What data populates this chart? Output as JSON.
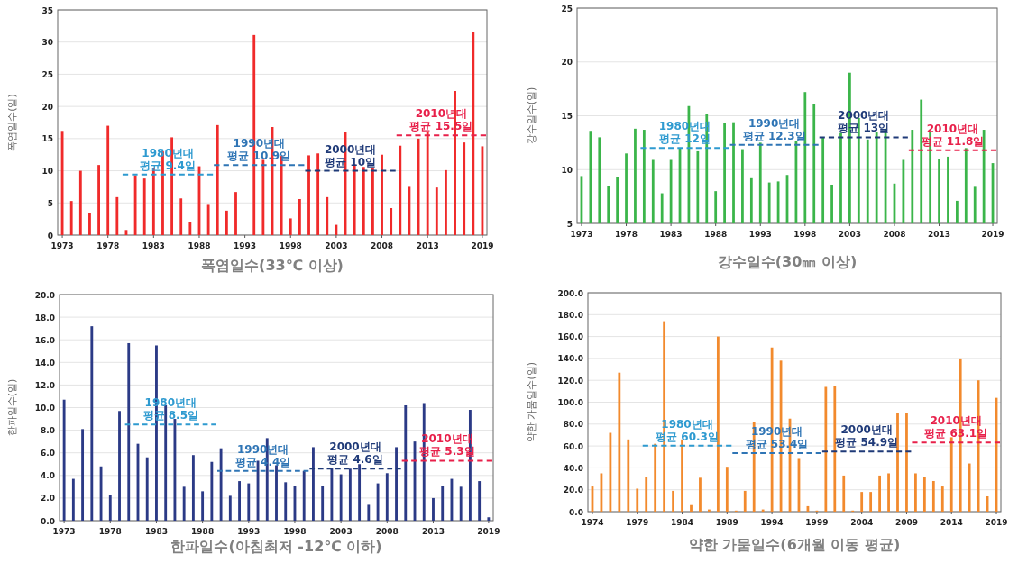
{
  "chart_data": [
    {
      "type": "bar",
      "title": "폭염일수(33℃ 이상)",
      "ylabel": "폭염일수(일)",
      "xlim": [
        1972.5,
        2019.5
      ],
      "xticks": [
        1973,
        1978,
        1983,
        1988,
        1993,
        1998,
        2003,
        2008,
        2013,
        2019
      ],
      "ylim": [
        0,
        35
      ],
      "yticks": [
        0,
        5,
        10,
        15,
        20,
        25,
        30,
        35
      ],
      "grid": "y",
      "x": [
        1973,
        1974,
        1975,
        1976,
        1977,
        1978,
        1979,
        1980,
        1981,
        1982,
        1983,
        1984,
        1985,
        1986,
        1987,
        1988,
        1989,
        1990,
        1991,
        1992,
        1993,
        1994,
        1995,
        1996,
        1997,
        1998,
        1999,
        2000,
        2001,
        2002,
        2003,
        2004,
        2005,
        2006,
        2007,
        2008,
        2009,
        2010,
        2011,
        2012,
        2013,
        2014,
        2015,
        2016,
        2017,
        2018,
        2019
      ],
      "series": [
        {
          "color": "#f02a2a",
          "values": [
            16.2,
            5.3,
            10.0,
            3.4,
            10.9,
            17.0,
            5.9,
            0.8,
            9.3,
            8.8,
            10.5,
            13.0,
            15.2,
            5.7,
            2.1,
            10.7,
            4.7,
            17.1,
            3.8,
            6.7,
            0,
            31.1,
            11.7,
            16.8,
            12.3,
            2.6,
            5.6,
            12.4,
            12.7,
            5.9,
            1.6,
            16.0,
            11.0,
            10.6,
            10.5,
            12.5,
            4.2,
            13.9,
            7.5,
            15.0,
            16.1,
            7.4,
            10.1,
            22.4,
            14.4,
            31.5,
            13.8
          ]
        },
        {
          "type": "line",
          "name": "1980년대\n평균 9.4일",
          "color": "#2e9ad0",
          "line_style": "dashed",
          "x": [
            1979.6,
            1989.5
          ],
          "values": [
            9.4,
            9.4
          ]
        },
        {
          "type": "line",
          "name": "1990년대\n평균 10.9일",
          "color": "#2f75b5",
          "line_style": "dashed",
          "x": [
            1989.6,
            1999.5
          ],
          "values": [
            10.9,
            10.9
          ]
        },
        {
          "type": "line",
          "name": "2000년대\n평균 10일",
          "color": "#1f3a78",
          "line_style": "dashed",
          "x": [
            1999.6,
            2009.5
          ],
          "values": [
            10,
            10
          ]
        },
        {
          "type": "line",
          "name": "2010년대\n평균 15.5일",
          "color": "#e8204a",
          "line_style": "dashed",
          "x": [
            2009.6,
            2019.4
          ],
          "values": [
            15.5,
            15.5
          ]
        }
      ]
    },
    {
      "type": "bar",
      "title": "강수일수(30㎜ 이상)",
      "ylabel": "강수일수(일)",
      "xlim": [
        1972.5,
        2019.5
      ],
      "xticks": [
        1973,
        1978,
        1983,
        1988,
        1993,
        1998,
        2003,
        2008,
        2013,
        2019
      ],
      "ylim": [
        5,
        25
      ],
      "yticks": [
        5,
        10,
        15,
        20,
        25
      ],
      "grid": "y",
      "x": [
        1973,
        1974,
        1975,
        1976,
        1977,
        1978,
        1979,
        1980,
        1981,
        1982,
        1983,
        1984,
        1985,
        1986,
        1987,
        1988,
        1989,
        1990,
        1991,
        1992,
        1993,
        1994,
        1995,
        1996,
        1997,
        1998,
        1999,
        2000,
        2001,
        2002,
        2003,
        2004,
        2005,
        2006,
        2007,
        2008,
        2009,
        2010,
        2011,
        2012,
        2013,
        2014,
        2015,
        2016,
        2017,
        2018,
        2019
      ],
      "series": [
        {
          "color": "#3bb54a",
          "values": [
            9.4,
            13.6,
            13.0,
            8.5,
            9.3,
            11.5,
            13.8,
            13.7,
            10.9,
            7.8,
            10.9,
            12.0,
            15.9,
            11.7,
            15.2,
            8.0,
            14.3,
            14.4,
            11.9,
            9.2,
            12.5,
            8.8,
            8.9,
            9.5,
            12.7,
            17.2,
            16.1,
            13.0,
            8.6,
            13.4,
            19.0,
            14.8,
            12.8,
            13.5,
            13.8,
            8.7,
            10.9,
            13.7,
            16.5,
            13.5,
            11.0,
            11.2,
            7.1,
            12.0,
            8.4,
            13.7,
            10.6
          ]
        },
        {
          "type": "line",
          "name": "1980년대\n평균 12일",
          "color": "#2e9ad0",
          "line_style": "dashed",
          "x": [
            1979.6,
            1989.5
          ],
          "values": [
            12,
            12
          ]
        },
        {
          "type": "line",
          "name": "1990년대\n평균 12.3일",
          "color": "#2f75b5",
          "line_style": "dashed",
          "x": [
            1989.6,
            1999.5
          ],
          "values": [
            12.3,
            12.3
          ]
        },
        {
          "type": "line",
          "name": "2000년대\n평균 13일",
          "color": "#1f3a78",
          "line_style": "dashed",
          "x": [
            1999.6,
            2009.5
          ],
          "values": [
            13,
            13
          ]
        },
        {
          "type": "line",
          "name": "2010년대\n평균 11.8일",
          "color": "#e8204a",
          "line_style": "dashed",
          "x": [
            2009.6,
            2019.4
          ],
          "values": [
            11.8,
            11.8
          ]
        }
      ]
    },
    {
      "type": "bar",
      "title": "한파일수(아침최저 -12℃ 이하)",
      "ylabel": "한파일수(일)",
      "xlim": [
        1972.5,
        2019.5
      ],
      "xticks": [
        1973,
        1978,
        1983,
        1988,
        1993,
        1998,
        2003,
        2008,
        2013,
        2019
      ],
      "ylim": [
        0,
        20
      ],
      "yticks": [
        {
          "value": 0,
          "label": "0.0"
        },
        {
          "value": 2,
          "label": "2.0"
        },
        {
          "value": 4,
          "label": "4.0"
        },
        {
          "value": 6,
          "label": "6.0"
        },
        {
          "value": 8,
          "label": "8.0"
        },
        {
          "value": 10,
          "label": "10.0"
        },
        {
          "value": 12,
          "label": "12.0"
        },
        {
          "value": 14,
          "label": "14.0"
        },
        {
          "value": 16,
          "label": "16.0"
        },
        {
          "value": 18,
          "label": "18.0"
        },
        {
          "value": 20,
          "label": "20.0"
        }
      ],
      "grid": "y",
      "x": [
        1973,
        1974,
        1975,
        1976,
        1977,
        1978,
        1979,
        1980,
        1981,
        1982,
        1983,
        1984,
        1985,
        1986,
        1987,
        1988,
        1989,
        1990,
        1991,
        1992,
        1993,
        1994,
        1995,
        1996,
        1997,
        1998,
        1999,
        2000,
        2001,
        2002,
        2003,
        2004,
        2005,
        2006,
        2007,
        2008,
        2009,
        2010,
        2011,
        2012,
        2013,
        2014,
        2015,
        2016,
        2017,
        2018,
        2019
      ],
      "series": [
        {
          "color": "#2b3a86",
          "values": [
            10.7,
            3.7,
            8.1,
            17.2,
            4.8,
            2.3,
            9.7,
            15.7,
            6.8,
            5.6,
            15.5,
            10.2,
            9.0,
            3.0,
            5.8,
            2.6,
            5.2,
            6.4,
            2.2,
            3.5,
            3.3,
            5.3,
            7.3,
            4.9,
            3.4,
            3.1,
            4.4,
            6.5,
            3.1,
            4.7,
            4.1,
            4.6,
            5.0,
            1.4,
            3.3,
            4.2,
            6.5,
            10.2,
            7.0,
            10.4,
            2.0,
            3.1,
            3.7,
            3.0,
            9.8,
            3.5,
            0.3
          ]
        },
        {
          "type": "line",
          "name": "1980년대\n평균 8.5일",
          "color": "#2e9ad0",
          "line_style": "dashed",
          "x": [
            1979.6,
            1989.5
          ],
          "values": [
            8.5,
            8.5
          ]
        },
        {
          "type": "line",
          "name": "1990년대\n평균 4.4일",
          "color": "#2f75b5",
          "line_style": "dashed",
          "x": [
            1989.6,
            1999.5
          ],
          "values": [
            4.4,
            4.4
          ]
        },
        {
          "type": "line",
          "name": "2000년대\n평균 4.6일",
          "color": "#1f3a78",
          "line_style": "dashed",
          "x": [
            1999.6,
            2009.5
          ],
          "values": [
            4.6,
            4.6
          ]
        },
        {
          "type": "line",
          "name": "2010년대\n평균 5.3일",
          "color": "#e8204a",
          "line_style": "dashed",
          "x": [
            2009.6,
            2019.4
          ],
          "values": [
            5.3,
            5.3
          ]
        }
      ]
    },
    {
      "type": "bar",
      "title": "약한 가뭄일수(6개월 이동 평균)",
      "ylabel": "약한 가뭄일수(일)",
      "xlim": [
        1973.5,
        2019.5
      ],
      "xticks": [
        1974,
        1979,
        1984,
        1989,
        1994,
        1999,
        2004,
        2009,
        2014,
        2019
      ],
      "ylim": [
        0,
        200
      ],
      "yticks": [
        {
          "value": 0,
          "label": "0.0"
        },
        {
          "value": 20,
          "label": "20.0"
        },
        {
          "value": 40,
          "label": "40.0"
        },
        {
          "value": 60,
          "label": "60.0"
        },
        {
          "value": 80,
          "label": "80.0"
        },
        {
          "value": 100,
          "label": "100.0"
        },
        {
          "value": 120,
          "label": "120.0"
        },
        {
          "value": 140,
          "label": "140.0"
        },
        {
          "value": 160,
          "label": "160.0"
        },
        {
          "value": 180,
          "label": "180.0"
        },
        {
          "value": 200,
          "label": "200.0"
        }
      ],
      "grid": "y",
      "x": [
        1974,
        1975,
        1976,
        1977,
        1978,
        1979,
        1980,
        1981,
        1982,
        1983,
        1984,
        1985,
        1986,
        1987,
        1988,
        1989,
        1990,
        1991,
        1992,
        1993,
        1994,
        1995,
        1996,
        1997,
        1998,
        1999,
        2000,
        2001,
        2002,
        2003,
        2004,
        2005,
        2006,
        2007,
        2008,
        2009,
        2010,
        2011,
        2012,
        2013,
        2014,
        2015,
        2016,
        2017,
        2018,
        2019
      ],
      "series": [
        {
          "color": "#f28a2d",
          "values": [
            23,
            35,
            72,
            127,
            66,
            21,
            32,
            62,
            174,
            19,
            66,
            6,
            31,
            2,
            160,
            41,
            1,
            19,
            82,
            2,
            150,
            138,
            85,
            49,
            5,
            1,
            114,
            115,
            33,
            1,
            18,
            18,
            33,
            35,
            90,
            90,
            35,
            32,
            28,
            23,
            68,
            140,
            44,
            120,
            14,
            104
          ]
        },
        {
          "type": "line",
          "name": "1980년대\n평균 60.3일",
          "color": "#2e9ad0",
          "line_style": "dashed",
          "x": [
            1979.6,
            1989.5
          ],
          "values": [
            60.3,
            60.3
          ]
        },
        {
          "type": "line",
          "name": "1990년대\n평균 53.4일",
          "color": "#2f75b5",
          "line_style": "dashed",
          "x": [
            1989.6,
            1999.5
          ],
          "values": [
            53.4,
            53.4
          ]
        },
        {
          "type": "line",
          "name": "2000년대\n평균 54.9일",
          "color": "#1f3a78",
          "line_style": "dashed",
          "x": [
            1999.6,
            2009.5
          ],
          "values": [
            54.9,
            54.9
          ]
        },
        {
          "type": "line",
          "name": "2010년대\n평균 63.1일",
          "color": "#e8204a",
          "line_style": "dashed",
          "x": [
            2009.6,
            2019.4
          ],
          "values": [
            63.1,
            63.1
          ]
        }
      ]
    }
  ]
}
